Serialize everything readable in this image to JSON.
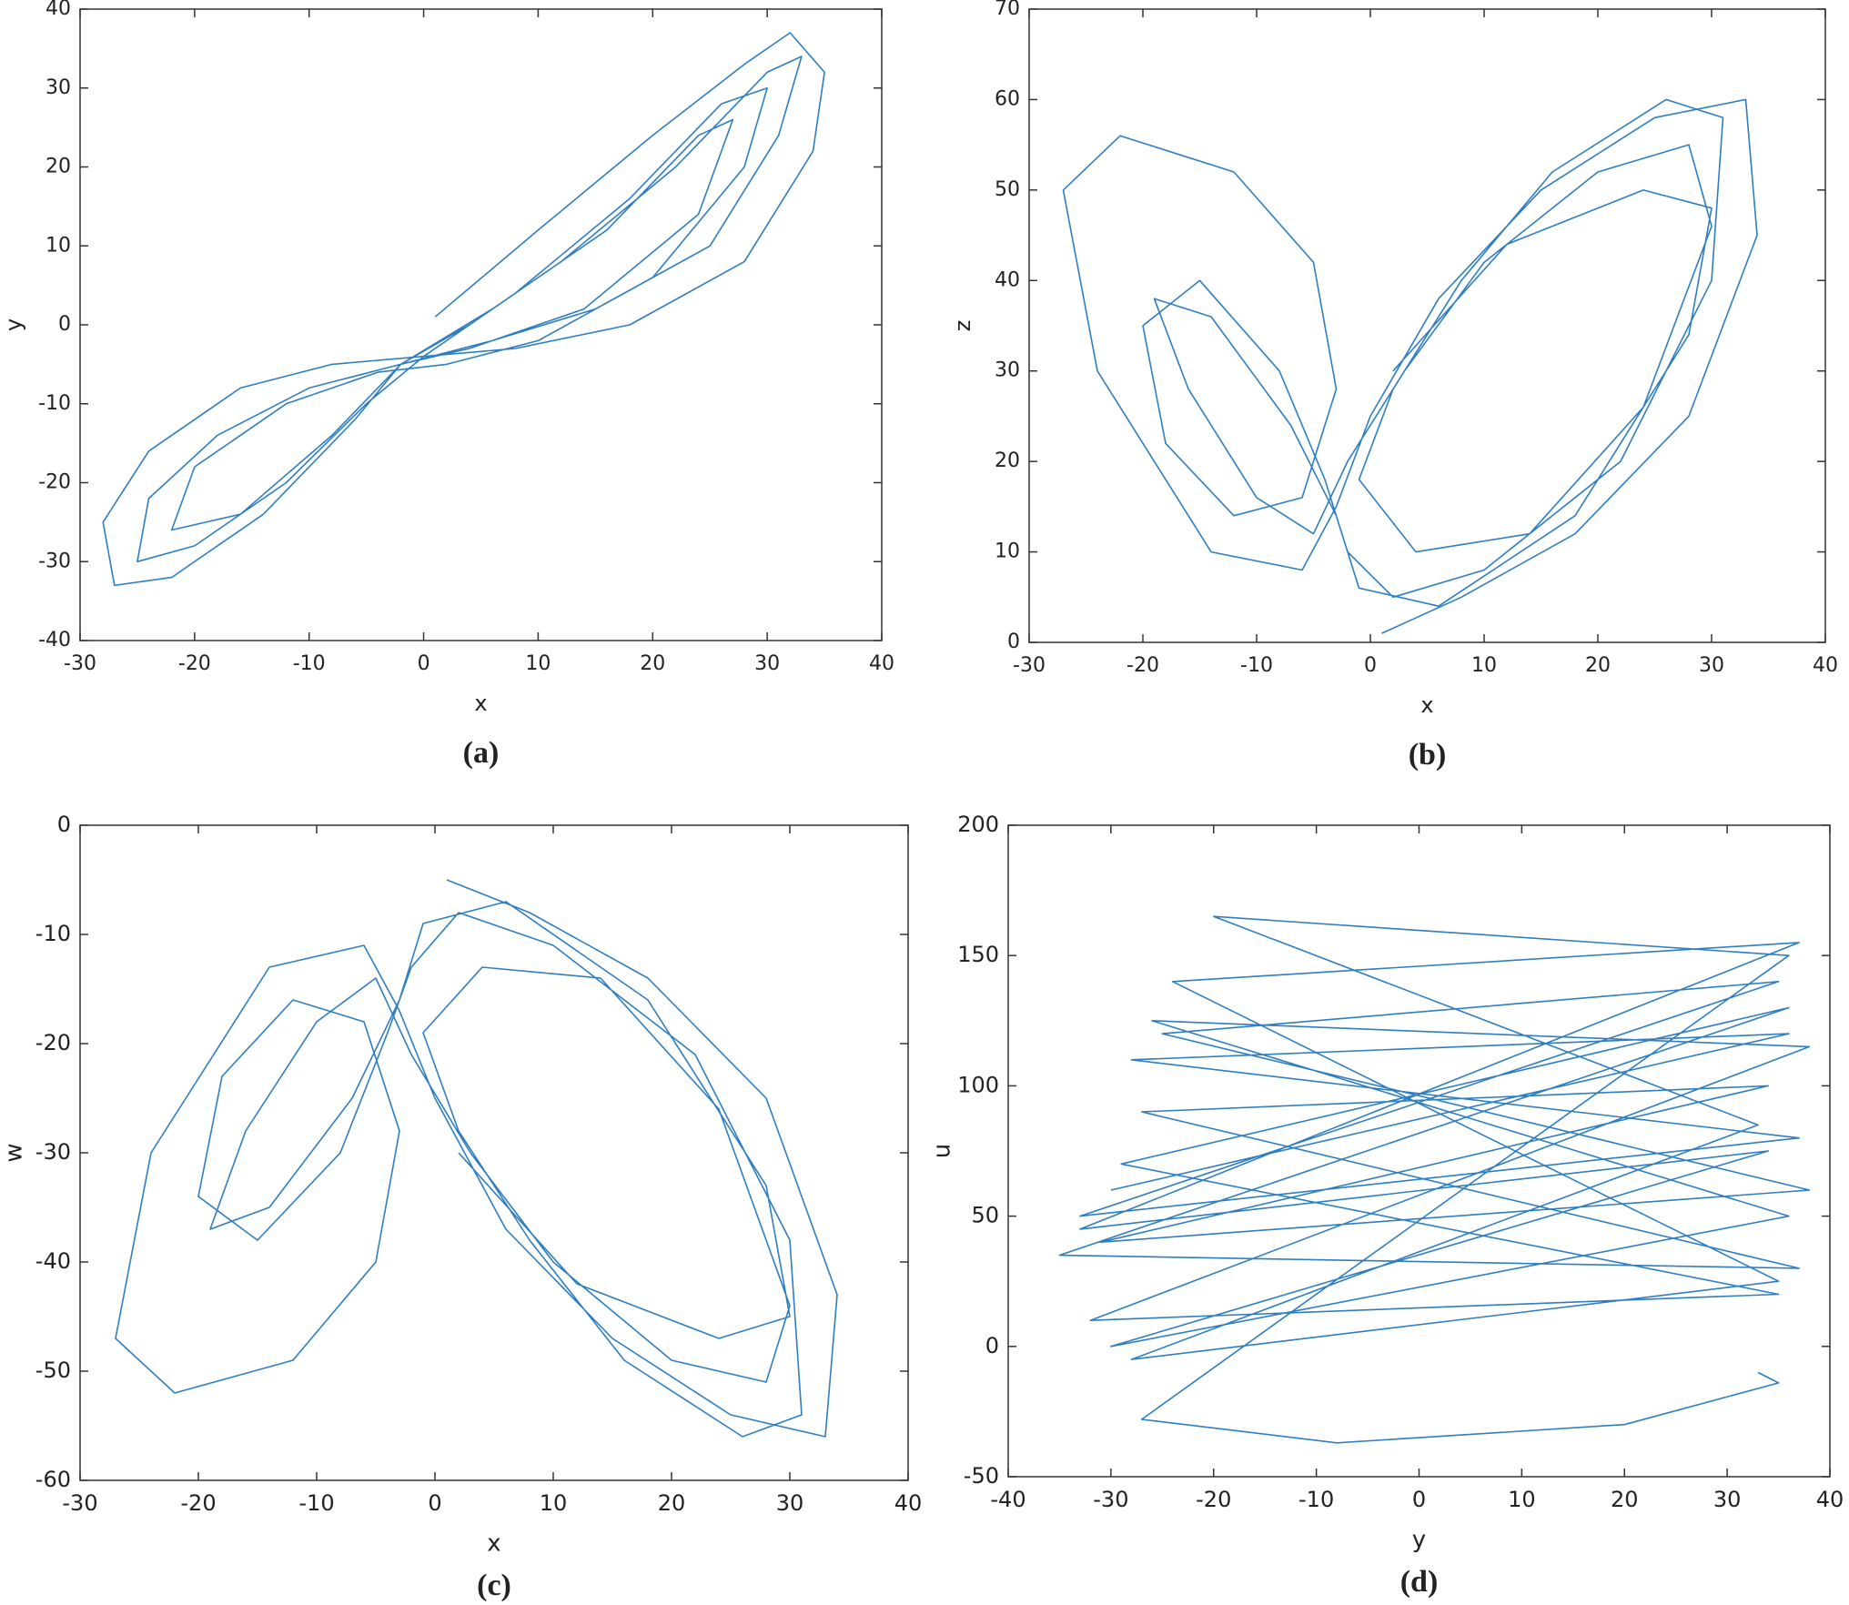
{
  "chart_data": [
    {
      "type": "line",
      "caption": "(a)",
      "xlabel": "x",
      "ylabel": "y",
      "color": "#2e7ec1",
      "xlim": [
        -30,
        40
      ],
      "ylim": [
        -40,
        40
      ],
      "xticks": [
        -30,
        -20,
        -10,
        0,
        10,
        20,
        30,
        40
      ],
      "yticks": [
        -40,
        -30,
        -20,
        -10,
        0,
        10,
        20,
        30,
        40
      ],
      "x": [
        1,
        10,
        20,
        28,
        32,
        35,
        34,
        28,
        18,
        8,
        0,
        -8,
        -16,
        -24,
        -28,
        -27,
        -22,
        -14,
        -6,
        -2,
        4,
        12,
        22,
        30,
        33,
        31,
        25,
        15,
        6,
        -2,
        -10,
        -18,
        -24,
        -25,
        -20,
        -12,
        -5,
        0,
        8,
        18,
        26,
        30,
        28,
        20,
        10,
        2,
        -4,
        -12,
        -20,
        -22,
        -16,
        -8,
        -2,
        6,
        16,
        24,
        27,
        24,
        14,
        4,
        -2
      ],
      "values": [
        1,
        12,
        24,
        33,
        37,
        32,
        22,
        8,
        0,
        -3,
        -4,
        -5,
        -8,
        -16,
        -25,
        -33,
        -32,
        -24,
        -12,
        -5,
        0,
        8,
        20,
        32,
        34,
        24,
        10,
        2,
        -2,
        -5,
        -8,
        -14,
        -22,
        -30,
        -28,
        -20,
        -10,
        -4,
        4,
        16,
        28,
        30,
        20,
        6,
        -2,
        -5,
        -6,
        -10,
        -18,
        -26,
        -24,
        -14,
        -5,
        2,
        12,
        24,
        26,
        14,
        2,
        -3,
        -5
      ]
    },
    {
      "type": "line",
      "caption": "(b)",
      "xlabel": "x",
      "ylabel": "z",
      "color": "#2e7ec1",
      "xlim": [
        -30,
        40
      ],
      "ylim": [
        0,
        70
      ],
      "xticks": [
        -30,
        -20,
        -10,
        0,
        10,
        20,
        30,
        40
      ],
      "yticks": [
        0,
        10,
        20,
        30,
        40,
        50,
        60,
        70
      ],
      "x": [
        1,
        8,
        18,
        28,
        34,
        33,
        25,
        15,
        6,
        0,
        -3,
        -6,
        -14,
        -24,
        -27,
        -22,
        -12,
        -5,
        -3,
        -6,
        -12,
        -18,
        -20,
        -15,
        -8,
        -4,
        -2,
        2,
        10,
        22,
        30,
        31,
        26,
        16,
        8,
        2,
        -1,
        4,
        14,
        24,
        30,
        28,
        20,
        10,
        3,
        -2,
        -5,
        -10,
        -16,
        -19,
        -14,
        -7,
        -3,
        -1,
        6,
        18,
        28,
        30,
        24,
        12,
        2
      ],
      "values": [
        1,
        5,
        12,
        25,
        45,
        60,
        58,
        50,
        38,
        25,
        15,
        8,
        10,
        30,
        50,
        56,
        52,
        42,
        28,
        16,
        14,
        22,
        35,
        40,
        30,
        18,
        10,
        5,
        8,
        20,
        40,
        58,
        60,
        52,
        40,
        28,
        18,
        10,
        12,
        26,
        46,
        55,
        52,
        42,
        30,
        20,
        12,
        16,
        28,
        38,
        36,
        24,
        14,
        6,
        4,
        14,
        34,
        48,
        50,
        44,
        30
      ]
    },
    {
      "type": "line",
      "caption": "(c)",
      "xlabel": "x",
      "ylabel": "w",
      "color": "#2e7ec1",
      "xlim": [
        -30,
        40
      ],
      "ylim": [
        -60,
        0
      ],
      "xticks": [
        -30,
        -20,
        -10,
        0,
        10,
        20,
        30,
        40
      ],
      "yticks": [
        -60,
        -50,
        -40,
        -30,
        -20,
        -10,
        0
      ],
      "x": [
        1,
        8,
        18,
        28,
        34,
        33,
        25,
        15,
        6,
        0,
        -3,
        -6,
        -14,
        -24,
        -27,
        -22,
        -12,
        -5,
        -3,
        -6,
        -12,
        -18,
        -20,
        -15,
        -8,
        -4,
        -2,
        2,
        10,
        22,
        30,
        31,
        26,
        16,
        8,
        2,
        -1,
        4,
        14,
        24,
        30,
        28,
        20,
        10,
        3,
        -2,
        -5,
        -10,
        -16,
        -19,
        -14,
        -7,
        -3,
        -1,
        6,
        18,
        28,
        30,
        24,
        12,
        2
      ],
      "values": [
        -5,
        -8,
        -14,
        -25,
        -43,
        -56,
        -54,
        -47,
        -37,
        -25,
        -17,
        -11,
        -13,
        -30,
        -47,
        -52,
        -49,
        -40,
        -28,
        -18,
        -16,
        -23,
        -34,
        -38,
        -30,
        -19,
        -13,
        -8,
        -11,
        -21,
        -38,
        -54,
        -56,
        -49,
        -38,
        -28,
        -19,
        -13,
        -14,
        -26,
        -44,
        -51,
        -49,
        -40,
        -30,
        -21,
        -14,
        -18,
        -28,
        -37,
        -35,
        -25,
        -16,
        -9,
        -7,
        -16,
        -33,
        -45,
        -47,
        -42,
        -30
      ]
    },
    {
      "type": "line",
      "caption": "(d)",
      "xlabel": "y",
      "ylabel": "u",
      "color": "#2e7ec1",
      "xlim": [
        -40,
        40
      ],
      "ylim": [
        -50,
        200
      ],
      "xticks": [
        -40,
        -30,
        -20,
        -10,
        0,
        10,
        20,
        30,
        40
      ],
      "yticks": [
        -50,
        0,
        50,
        100,
        150,
        200
      ],
      "x": [
        -30,
        36,
        -28,
        37,
        -33,
        35,
        -25,
        38,
        -31,
        34,
        -27,
        37,
        -35,
        36,
        -29,
        35,
        -32,
        38,
        -26,
        36,
        -30,
        34,
        -33,
        37,
        -24,
        35,
        -28,
        33,
        -20,
        36,
        -27,
        -8,
        20,
        35,
        33
      ],
      "values": [
        60,
        120,
        110,
        80,
        50,
        140,
        120,
        60,
        40,
        100,
        90,
        30,
        35,
        130,
        70,
        20,
        10,
        115,
        125,
        50,
        0,
        75,
        45,
        155,
        140,
        25,
        -5,
        85,
        165,
        150,
        -28,
        -37,
        -30,
        -14,
        -10
      ]
    }
  ]
}
